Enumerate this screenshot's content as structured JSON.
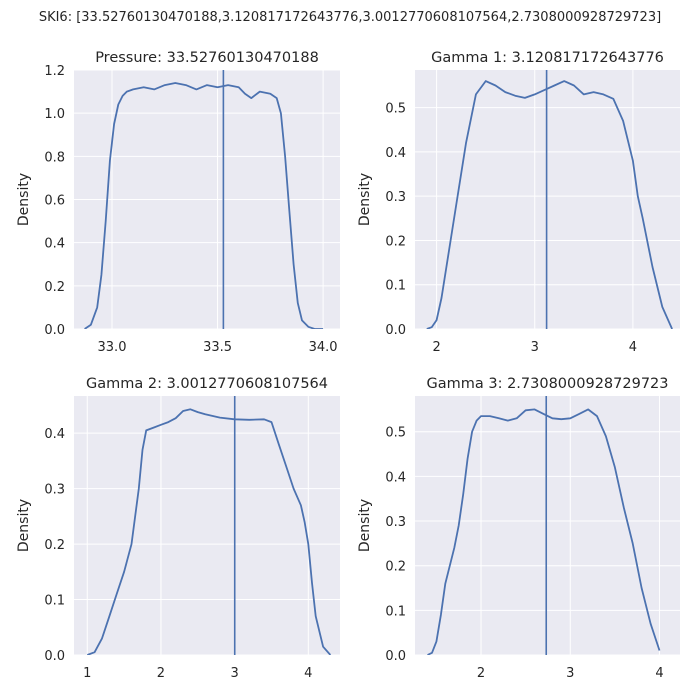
{
  "suptitle": "SKI6: [33.52760130470188,3.120817172643776,3.0012770608107564,2.7308000928729723]",
  "colors": {
    "panel_bg": "#EAEAF2",
    "grid": "#FFFFFF",
    "line": "#4C72B0"
  },
  "chart_data": [
    {
      "type": "line",
      "title": "Pressure: 33.52760130470188",
      "ylabel": "Density",
      "xlim": [
        32.82,
        34.08
      ],
      "ylim": [
        0,
        1.2
      ],
      "xticks": [
        33.0,
        33.5,
        34.0
      ],
      "xtick_labels": [
        "33.0",
        "33.5",
        "34.0"
      ],
      "yticks": [
        0,
        0.2,
        0.4,
        0.6,
        0.8,
        1.0,
        1.2
      ],
      "ytick_labels": [
        "0.0",
        "0.2",
        "0.4",
        "0.6",
        "0.8",
        "1.0",
        "1.2"
      ],
      "vline": 33.52760130470188,
      "series": [
        {
          "x": [
            32.87,
            32.9,
            32.93,
            32.95,
            32.97,
            32.99,
            33.01,
            33.03,
            33.05,
            33.07,
            33.1,
            33.15,
            33.2,
            33.25,
            33.3,
            33.35,
            33.4,
            33.45,
            33.5,
            33.55,
            33.6,
            33.63,
            33.66,
            33.7,
            33.75,
            33.78,
            33.8,
            33.82,
            33.84,
            33.86,
            33.88,
            33.9,
            33.93,
            33.96,
            34.0
          ],
          "y": [
            0.0,
            0.02,
            0.1,
            0.25,
            0.5,
            0.78,
            0.95,
            1.04,
            1.08,
            1.1,
            1.11,
            1.12,
            1.11,
            1.13,
            1.14,
            1.13,
            1.11,
            1.13,
            1.12,
            1.13,
            1.12,
            1.09,
            1.07,
            1.1,
            1.09,
            1.07,
            1.0,
            0.8,
            0.55,
            0.3,
            0.12,
            0.04,
            0.01,
            0.0,
            0.0
          ]
        }
      ]
    },
    {
      "type": "line",
      "title": "Gamma 1: 3.120817172643776",
      "ylabel": "Density",
      "xlim": [
        1.78,
        4.48
      ],
      "ylim": [
        0,
        0.585
      ],
      "xticks": [
        2,
        3,
        4
      ],
      "xtick_labels": [
        "2",
        "3",
        "4"
      ],
      "yticks": [
        0,
        0.1,
        0.2,
        0.3,
        0.4,
        0.5
      ],
      "ytick_labels": [
        "0.0",
        "0.1",
        "0.2",
        "0.3",
        "0.4",
        "0.5"
      ],
      "vline": 3.120817172643776,
      "series": [
        {
          "x": [
            1.9,
            1.95,
            2.0,
            2.05,
            2.1,
            2.15,
            2.2,
            2.3,
            2.4,
            2.5,
            2.6,
            2.7,
            2.8,
            2.9,
            3.0,
            3.1,
            3.2,
            3.3,
            3.4,
            3.5,
            3.6,
            3.7,
            3.8,
            3.9,
            4.0,
            4.05,
            4.1,
            4.2,
            4.3,
            4.4
          ],
          "y": [
            0.0,
            0.004,
            0.02,
            0.07,
            0.14,
            0.21,
            0.28,
            0.42,
            0.53,
            0.56,
            0.55,
            0.535,
            0.527,
            0.522,
            0.53,
            0.54,
            0.55,
            0.56,
            0.55,
            0.53,
            0.535,
            0.53,
            0.52,
            0.47,
            0.38,
            0.3,
            0.25,
            0.14,
            0.05,
            0.0
          ]
        }
      ]
    },
    {
      "type": "line",
      "title": "Gamma 2: 3.0012770608107564",
      "ylabel": "Density",
      "xlim": [
        0.82,
        4.43
      ],
      "ylim": [
        0,
        0.467
      ],
      "xticks": [
        1,
        2,
        3,
        4
      ],
      "xtick_labels": [
        "1",
        "2",
        "3",
        "4"
      ],
      "yticks": [
        0,
        0.1,
        0.2,
        0.3,
        0.4
      ],
      "ytick_labels": [
        "0.0",
        "0.1",
        "0.2",
        "0.3",
        "0.4"
      ],
      "vline": 3.0012770608107564,
      "series": [
        {
          "x": [
            1.0,
            1.1,
            1.2,
            1.3,
            1.4,
            1.5,
            1.6,
            1.7,
            1.75,
            1.8,
            1.9,
            2.0,
            2.1,
            2.2,
            2.3,
            2.4,
            2.5,
            2.6,
            2.8,
            3.0,
            3.2,
            3.4,
            3.5,
            3.6,
            3.7,
            3.8,
            3.9,
            3.95,
            4.0,
            4.05,
            4.1,
            4.2,
            4.3
          ],
          "y": [
            0.0,
            0.005,
            0.03,
            0.07,
            0.11,
            0.15,
            0.2,
            0.3,
            0.37,
            0.405,
            0.41,
            0.415,
            0.42,
            0.427,
            0.44,
            0.443,
            0.438,
            0.434,
            0.428,
            0.425,
            0.424,
            0.425,
            0.42,
            0.38,
            0.34,
            0.3,
            0.27,
            0.24,
            0.2,
            0.13,
            0.07,
            0.015,
            0.0
          ]
        }
      ]
    },
    {
      "type": "line",
      "title": "Gamma 3: 2.7308000928729723",
      "ylabel": "Density",
      "xlim": [
        1.26,
        4.23
      ],
      "ylim": [
        0,
        0.58
      ],
      "xticks": [
        2,
        3,
        4
      ],
      "xtick_labels": [
        "2",
        "3",
        "4"
      ],
      "yticks": [
        0,
        0.1,
        0.2,
        0.3,
        0.4,
        0.5
      ],
      "ytick_labels": [
        "0.0",
        "0.1",
        "0.2",
        "0.3",
        "0.4",
        "0.5"
      ],
      "vline": 2.7308000928729723,
      "series": [
        {
          "x": [
            1.4,
            1.45,
            1.5,
            1.55,
            1.6,
            1.65,
            1.7,
            1.75,
            1.8,
            1.85,
            1.9,
            1.95,
            2.0,
            2.1,
            2.2,
            2.3,
            2.4,
            2.5,
            2.6,
            2.7,
            2.8,
            2.9,
            3.0,
            3.1,
            3.2,
            3.3,
            3.4,
            3.5,
            3.6,
            3.7,
            3.8,
            3.9,
            4.0
          ],
          "y": [
            0.0,
            0.005,
            0.03,
            0.09,
            0.16,
            0.2,
            0.24,
            0.29,
            0.36,
            0.44,
            0.5,
            0.525,
            0.535,
            0.535,
            0.53,
            0.525,
            0.53,
            0.548,
            0.55,
            0.54,
            0.53,
            0.528,
            0.53,
            0.54,
            0.55,
            0.535,
            0.49,
            0.42,
            0.33,
            0.25,
            0.15,
            0.07,
            0.01
          ]
        }
      ]
    }
  ]
}
